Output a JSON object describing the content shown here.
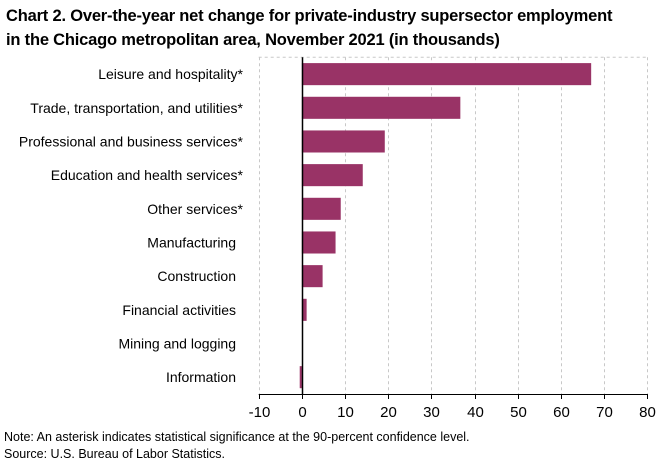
{
  "chart_data": {
    "type": "bar",
    "orientation": "horizontal",
    "title": "Chart 2. Over-the-year net change for private-industry supersector employment in the Chicago metropolitan area, November 2021 (in thousands)",
    "title_lines": [
      "Chart 2. Over-the-year net change for private-industry supersector employment",
      "in the Chicago metropolitan area, November 2021 (in thousands)"
    ],
    "categories": [
      "Leisure and hospitality*",
      "Trade, transportation, and utilities*",
      "Professional and business services*",
      "Education and health services*",
      "Other services*",
      "Manufacturing",
      "Construction",
      "Financial activities",
      "Mining and logging",
      "Information"
    ],
    "values": [
      67.0,
      36.7,
      19.2,
      14.1,
      9.0,
      7.8,
      4.8,
      1.1,
      0.0,
      -0.5
    ],
    "xlabel": "",
    "ylabel": "",
    "xlim": [
      -10,
      80
    ],
    "xticks": [
      -10,
      0,
      10,
      20,
      30,
      40,
      50,
      60,
      70,
      80
    ],
    "xtick_labels": [
      "-10",
      "0",
      "10",
      "20",
      "30",
      "40",
      "50",
      "60",
      "70",
      "80"
    ],
    "grid": true,
    "grid_style": "dashed vertical",
    "legend": "none",
    "bar_color": "#993366",
    "gridline_color": "#c8c8c8",
    "annotations": {
      "note": "Note: An asterisk indicates statistical significance at the 90-percent confidence level.",
      "source": "Source: U.S. Bureau of Labor Statistics."
    }
  }
}
